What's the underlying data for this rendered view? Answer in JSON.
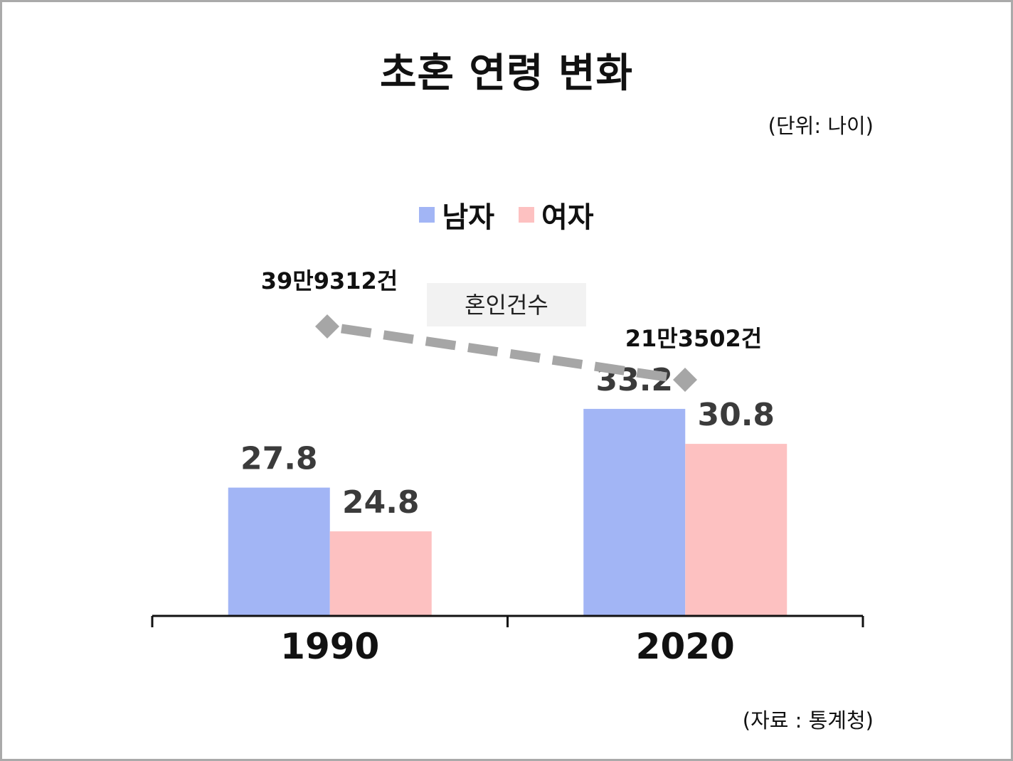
{
  "title": "초혼 연령 변화",
  "unit_note": "(단위: 나이)",
  "source_note": "(자료 : 통계청)",
  "colors": {
    "male": "#a2b5f5",
    "female": "#fdc1c1",
    "trend": "#a6a6a6",
    "annotation_bg": "#f2f2f2"
  },
  "chart_data": {
    "type": "bar",
    "categories": [
      "1990",
      "2020"
    ],
    "series": [
      {
        "name": "남자",
        "values": [
          27.8,
          33.2
        ],
        "value_labels": [
          "27.8",
          "33.2"
        ]
      },
      {
        "name": "여자",
        "values": [
          24.8,
          30.8
        ],
        "value_labels": [
          "24.8",
          "30.8"
        ]
      }
    ],
    "legend": [
      "남자",
      "여자"
    ],
    "legend_position": "top-center",
    "grid": false,
    "marriage_count_trend": {
      "label": "혼인건수",
      "points": [
        {
          "category": "1990",
          "label": "39만9312건"
        },
        {
          "category": "2020",
          "label": "21만3502건"
        }
      ]
    }
  }
}
